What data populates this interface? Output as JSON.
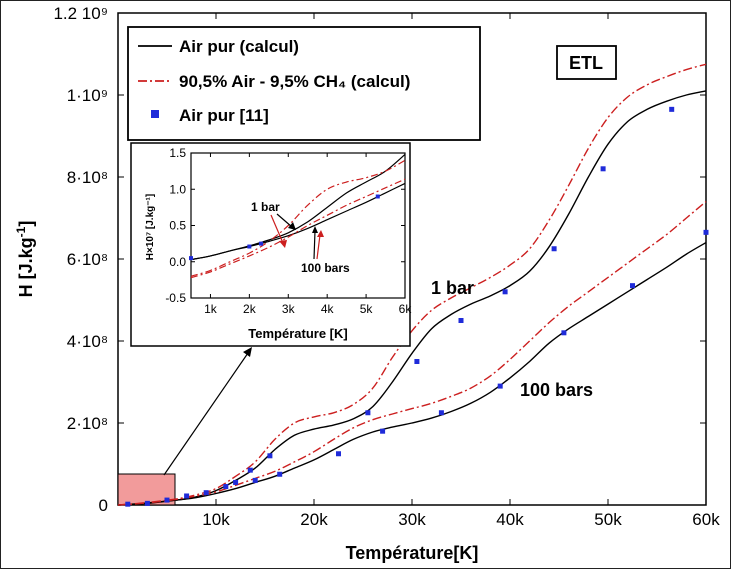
{
  "chart_data": [
    {
      "type": "line",
      "title": "",
      "xlabel": "Température[K]",
      "ylabel": "H [J.kg-1]",
      "xlim": [
        0,
        60000
      ],
      "ylim": [
        0,
        1200000000
      ],
      "x_ticks": [
        "10k",
        "20k",
        "30k",
        "40k",
        "50k",
        "60k"
      ],
      "y_ticks": [
        "0",
        "2·10⁸",
        "4·10⁸",
        "6·10⁸",
        "8·10⁸",
        "1·10⁹",
        "1.2 10⁹"
      ],
      "tag": "ETL",
      "legend_position": "top-left",
      "legend": [
        "Air pur (calcul)",
        "90,5% Air - 9,5% CH₄ (calcul)",
        "Air pur [11]"
      ],
      "annotations": [
        "1 bar",
        "100 bars"
      ],
      "colors": {
        "air": "#000000",
        "mix": "#cc1f1f",
        "points": "#1f2bd9",
        "zoom_box": "#f08a8a"
      },
      "series": [
        {
          "name": "Air pur (calcul)",
          "pressure": "1 bar",
          "style": "solid",
          "x": [
            0,
            3000,
            6000,
            8000,
            10000,
            12000,
            14000,
            16000,
            18000,
            20000,
            22000,
            24000,
            26000,
            28000,
            30000,
            32000,
            34000,
            36000,
            38000,
            40000,
            42000,
            44000,
            46000,
            48000,
            50000,
            52000,
            54000,
            56000,
            58000,
            60000
          ],
          "y": [
            0,
            5000000,
            12000000,
            20000000,
            35000000,
            60000000,
            90000000,
            135000000,
            170000000,
            185000000,
            195000000,
            210000000,
            240000000,
            300000000,
            370000000,
            430000000,
            465000000,
            490000000,
            510000000,
            535000000,
            570000000,
            630000000,
            710000000,
            800000000,
            880000000,
            935000000,
            965000000,
            985000000,
            1000000000,
            1010000000
          ]
        },
        {
          "name": "90,5% Air - 9,5% CH₄ (calcul)",
          "pressure": "1 bar",
          "style": "dashdot",
          "x": [
            0,
            3000,
            6000,
            8000,
            10000,
            12000,
            14000,
            16000,
            18000,
            20000,
            22000,
            24000,
            26000,
            28000,
            30000,
            32000,
            34000,
            36000,
            38000,
            40000,
            42000,
            44000,
            46000,
            48000,
            50000,
            52000,
            54000,
            56000,
            58000,
            60000
          ],
          "y": [
            0,
            6000000,
            15000000,
            25000000,
            40000000,
            70000000,
            105000000,
            160000000,
            200000000,
            215000000,
            225000000,
            245000000,
            285000000,
            360000000,
            425000000,
            475000000,
            505000000,
            530000000,
            555000000,
            585000000,
            625000000,
            695000000,
            780000000,
            870000000,
            945000000,
            995000000,
            1025000000,
            1045000000,
            1062000000,
            1075000000
          ]
        },
        {
          "name": "Air pur (calcul)",
          "pressure": "100 bars",
          "style": "solid",
          "x": [
            0,
            3000,
            6000,
            8000,
            10000,
            12000,
            14000,
            16000,
            18000,
            20000,
            22000,
            24000,
            26000,
            28000,
            30000,
            32000,
            34000,
            36000,
            38000,
            40000,
            42000,
            44000,
            46000,
            48000,
            50000,
            52000,
            54000,
            56000,
            58000,
            60000
          ],
          "y": [
            0,
            4000000,
            12000000,
            18000000,
            28000000,
            40000000,
            55000000,
            70000000,
            90000000,
            110000000,
            135000000,
            160000000,
            178000000,
            190000000,
            200000000,
            212000000,
            228000000,
            248000000,
            275000000,
            310000000,
            350000000,
            395000000,
            430000000,
            460000000,
            490000000,
            520000000,
            550000000,
            580000000,
            612000000,
            640000000
          ]
        },
        {
          "name": "90,5% Air - 9,5% CH₄ (calcul)",
          "pressure": "100 bars",
          "style": "dashdot",
          "x": [
            0,
            3000,
            6000,
            8000,
            10000,
            12000,
            14000,
            16000,
            18000,
            20000,
            22000,
            24000,
            26000,
            28000,
            30000,
            32000,
            34000,
            36000,
            38000,
            40000,
            42000,
            44000,
            46000,
            48000,
            50000,
            52000,
            54000,
            56000,
            58000,
            60000
          ],
          "y": [
            0,
            5000000,
            14000000,
            22000000,
            32000000,
            48000000,
            65000000,
            82000000,
            105000000,
            130000000,
            160000000,
            188000000,
            208000000,
            222000000,
            235000000,
            248000000,
            265000000,
            285000000,
            315000000,
            355000000,
            400000000,
            445000000,
            485000000,
            520000000,
            555000000,
            590000000,
            625000000,
            660000000,
            700000000,
            740000000
          ]
        },
        {
          "name": "Air pur [11]",
          "pressure": "1 bar",
          "style": "markers",
          "x": [
            1000,
            3000,
            5000,
            7000,
            9000,
            11000,
            13500,
            15500,
            25500,
            30500,
            35000,
            39500,
            44500,
            49500,
            56500
          ],
          "y": [
            2000000,
            4000000,
            12000000,
            22000000,
            30000000,
            45000000,
            85000000,
            120000000,
            225000000,
            350000000,
            450000000,
            520000000,
            625000000,
            820000000,
            965000000
          ]
        },
        {
          "name": "Air pur [11]",
          "pressure": "100 bars",
          "style": "markers",
          "x": [
            12000,
            14000,
            16500,
            22500,
            27000,
            33000,
            39000,
            45500,
            52500,
            60000
          ],
          "y": [
            55000000,
            60000000,
            75000000,
            125000000,
            180000000,
            225000000,
            290000000,
            420000000,
            535000000,
            665000000
          ]
        }
      ]
    },
    {
      "type": "line",
      "title": "",
      "xlabel": "Température [K]",
      "ylabel": "H×10⁷ [J.kg⁻¹]",
      "xlim": [
        500,
        6000
      ],
      "ylim": [
        -0.5,
        1.5
      ],
      "x_ticks": [
        "1k",
        "2k",
        "3k",
        "4k",
        "5k",
        "6k"
      ],
      "y_ticks": [
        "-0.5",
        "0.0",
        "0.5",
        "1.0",
        "1.5"
      ],
      "annotations": [
        "1 bar",
        "100 bars"
      ],
      "series": [
        {
          "name": "Air pur (calcul)",
          "pressure": "1 bar",
          "style": "solid",
          "x": [
            500,
            1000,
            1500,
            2000,
            2500,
            3000,
            3500,
            4000,
            4500,
            5000,
            5500,
            6000
          ],
          "y": [
            0.03,
            0.08,
            0.15,
            0.22,
            0.3,
            0.4,
            0.55,
            0.75,
            0.95,
            1.1,
            1.25,
            1.48
          ]
        },
        {
          "name": "90,5% Air - 9,5% CH₄ (calcul)",
          "pressure": "1 bar",
          "style": "dashdot",
          "x": [
            500,
            1000,
            1500,
            2000,
            2500,
            3000,
            3500,
            4000,
            4500,
            5000,
            5500,
            6000
          ],
          "y": [
            -0.2,
            -0.12,
            0.0,
            0.12,
            0.28,
            0.5,
            0.78,
            1.0,
            1.1,
            1.16,
            1.25,
            1.4
          ]
        },
        {
          "name": "Air pur (calcul)",
          "pressure": "100 bars",
          "style": "solid",
          "x": [
            500,
            1000,
            1500,
            2000,
            2500,
            3000,
            3500,
            4000,
            4500,
            5000,
            5500,
            6000
          ],
          "y": [
            0.03,
            0.08,
            0.15,
            0.21,
            0.28,
            0.36,
            0.46,
            0.58,
            0.7,
            0.82,
            0.95,
            1.08
          ]
        },
        {
          "name": "90,5% Air - 9,5% CH₄ (calcul)",
          "pressure": "100 bars",
          "style": "dashdot",
          "x": [
            500,
            1000,
            1500,
            2000,
            2500,
            3000,
            3500,
            4000,
            4500,
            5000,
            5500,
            6000
          ],
          "y": [
            -0.22,
            -0.14,
            -0.03,
            0.08,
            0.2,
            0.34,
            0.5,
            0.64,
            0.78,
            0.9,
            1.02,
            1.14
          ]
        },
        {
          "name": "Air pur [11]",
          "pressure": "1 bar",
          "style": "markers",
          "x": [
            500,
            2000,
            2300,
            5300
          ],
          "y": [
            0.05,
            0.21,
            0.25,
            0.9
          ]
        }
      ]
    }
  ]
}
